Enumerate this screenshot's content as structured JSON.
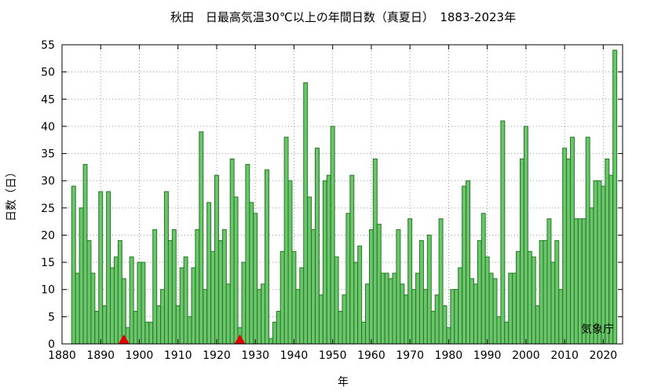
{
  "chart_data": {
    "type": "bar",
    "title": "秋田　日最高気温30℃以上の年間日数（真夏日）　1883-2023年",
    "xlabel": "年",
    "ylabel": "日数（日）",
    "credit": "気象庁",
    "xlim": [
      1880,
      2025
    ],
    "ylim": [
      0,
      55
    ],
    "xticks": [
      1880,
      1890,
      1900,
      1910,
      1920,
      1930,
      1940,
      1950,
      1960,
      1970,
      1980,
      1990,
      2000,
      2010,
      2020
    ],
    "yticks": [
      0,
      5,
      10,
      15,
      20,
      25,
      30,
      35,
      40,
      45,
      50,
      55
    ],
    "grid": true,
    "bar_color": "#6cc46c",
    "bar_edge_color": "#1f7a1f",
    "marker_color": "#e00000",
    "markers_x": [
      1896,
      1926
    ],
    "years": [
      1883,
      1884,
      1885,
      1886,
      1887,
      1888,
      1889,
      1890,
      1891,
      1892,
      1893,
      1894,
      1895,
      1896,
      1897,
      1898,
      1899,
      1900,
      1901,
      1902,
      1903,
      1904,
      1905,
      1906,
      1907,
      1908,
      1909,
      1910,
      1911,
      1912,
      1913,
      1914,
      1915,
      1916,
      1917,
      1918,
      1919,
      1920,
      1921,
      1922,
      1923,
      1924,
      1925,
      1926,
      1927,
      1928,
      1929,
      1930,
      1931,
      1932,
      1933,
      1934,
      1935,
      1936,
      1937,
      1938,
      1939,
      1940,
      1941,
      1942,
      1943,
      1944,
      1945,
      1946,
      1947,
      1948,
      1949,
      1950,
      1951,
      1952,
      1953,
      1954,
      1955,
      1956,
      1957,
      1958,
      1959,
      1960,
      1961,
      1962,
      1963,
      1964,
      1965,
      1966,
      1967,
      1968,
      1969,
      1970,
      1971,
      1972,
      1973,
      1974,
      1975,
      1976,
      1977,
      1978,
      1979,
      1980,
      1981,
      1982,
      1983,
      1984,
      1985,
      1986,
      1987,
      1988,
      1989,
      1990,
      1991,
      1992,
      1993,
      1994,
      1995,
      1996,
      1997,
      1998,
      1999,
      2000,
      2001,
      2002,
      2003,
      2004,
      2005,
      2006,
      2007,
      2008,
      2009,
      2010,
      2011,
      2012,
      2013,
      2014,
      2015,
      2016,
      2017,
      2018,
      2019,
      2020,
      2021,
      2022,
      2023
    ],
    "values": [
      29,
      13,
      25,
      33,
      19,
      13,
      6,
      28,
      7,
      28,
      14,
      16,
      19,
      12,
      3,
      16,
      6,
      15,
      15,
      4,
      4,
      21,
      7,
      10,
      28,
      19,
      21,
      7,
      14,
      16,
      5,
      14,
      21,
      39,
      10,
      26,
      17,
      31,
      19,
      21,
      11,
      34,
      27,
      3,
      15,
      33,
      26,
      24,
      10,
      11,
      32,
      1,
      4,
      6,
      17,
      38,
      30,
      17,
      10,
      14,
      48,
      27,
      21,
      36,
      9,
      30,
      31,
      40,
      16,
      6,
      9,
      24,
      31,
      15,
      18,
      4,
      11,
      21,
      34,
      22,
      13,
      13,
      12,
      13,
      21,
      11,
      9,
      23,
      10,
      13,
      19,
      10,
      20,
      6,
      9,
      23,
      7,
      3,
      10,
      10,
      14,
      29,
      30,
      12,
      11,
      19,
      24,
      16,
      13,
      12,
      5,
      41,
      4,
      13,
      13,
      17,
      34,
      40,
      17,
      16,
      7,
      19,
      19,
      23,
      15,
      19,
      10,
      36,
      34,
      38,
      23,
      23,
      23,
      38,
      25,
      30,
      30,
      29,
      34,
      31,
      54
    ]
  }
}
